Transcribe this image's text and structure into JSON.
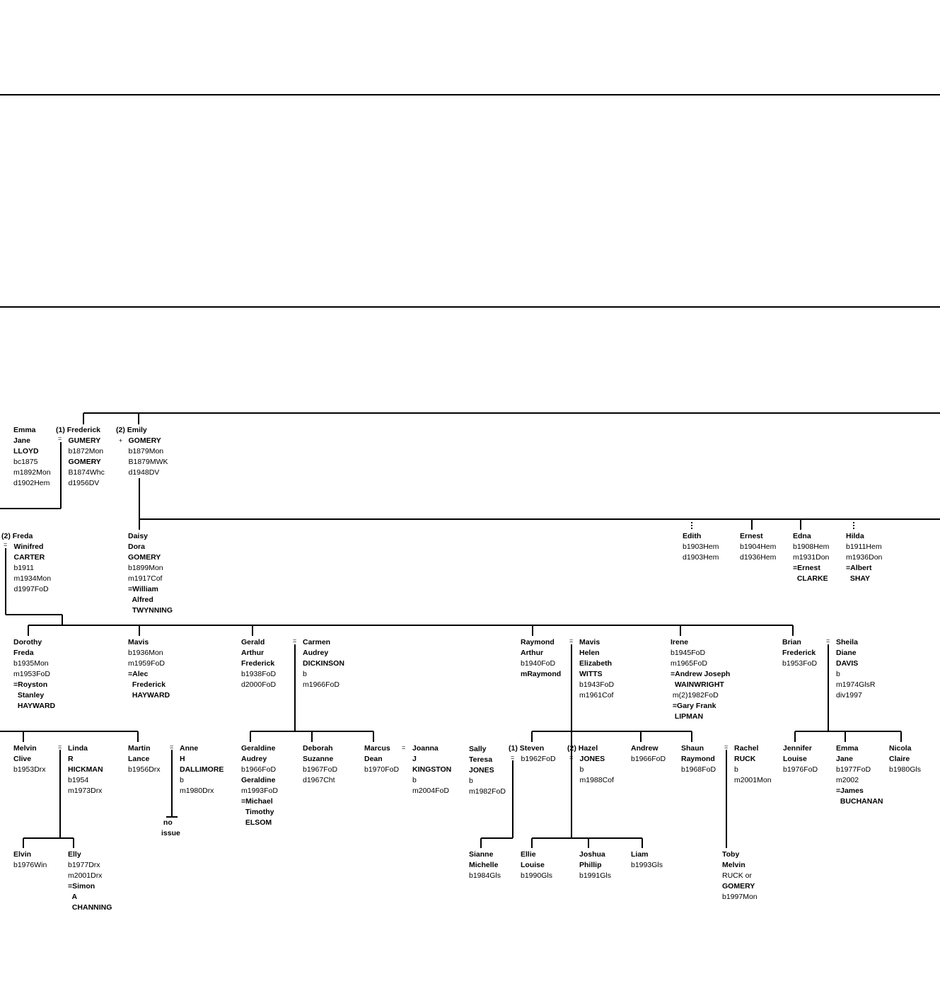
{
  "colors": {
    "background": "#ffffff",
    "ink": "#000000"
  },
  "people": [
    {
      "id": "emma",
      "lines": [
        {
          "t": "Emma",
          "b": true
        },
        {
          "t": "Jane",
          "b": true
        },
        {
          "t": "LLOYD",
          "b": true
        },
        {
          "t": "bc1875"
        },
        {
          "t": "m1892Mon"
        },
        {
          "t": "d1902Hem"
        }
      ]
    },
    {
      "id": "frederick",
      "lines": [
        {
          "t": "(1) Frederick",
          "b": true
        },
        {
          "t": "      GUMERY",
          "b": true
        },
        {
          "t": "      b1872Mon"
        },
        {
          "t": "      GOMERY",
          "b": true
        },
        {
          "t": "      B1874Whc"
        },
        {
          "t": "      d1956DV"
        }
      ]
    },
    {
      "id": "emily",
      "lines": [
        {
          "t": "(2) Emily",
          "b": true
        },
        {
          "t": "      GOMERY",
          "b": true
        },
        {
          "t": "      b1879Mon"
        },
        {
          "t": "      B1879MWK"
        },
        {
          "t": "      d1948DV"
        }
      ]
    },
    {
      "id": "freda",
      "lines": [
        {
          "t": "(2) Freda",
          "b": true
        },
        {
          "t": "      Winifred",
          "b": true
        },
        {
          "t": "      CARTER",
          "b": true
        },
        {
          "t": "      b1911"
        },
        {
          "t": "      m1934Mon"
        },
        {
          "t": "      d1997FoD"
        }
      ]
    },
    {
      "id": "daisy",
      "lines": [
        {
          "t": "Daisy",
          "b": true
        },
        {
          "t": "Dora",
          "b": true
        },
        {
          "t": "GOMERY",
          "b": true
        },
        {
          "t": "b1899Mon"
        },
        {
          "t": "m1917Cof"
        },
        {
          "t": "=William",
          "b": true
        },
        {
          "t": "  Alfred",
          "b": true
        },
        {
          "t": "  TWYNNING",
          "b": true
        }
      ]
    },
    {
      "id": "edith",
      "lines": [
        {
          "t": "Edith",
          "b": true
        },
        {
          "t": "b1903Hem"
        },
        {
          "t": "d1903Hem"
        }
      ]
    },
    {
      "id": "ernest",
      "lines": [
        {
          "t": "Ernest",
          "b": true
        },
        {
          "t": "b1904Hem"
        },
        {
          "t": "d1936Hem"
        }
      ]
    },
    {
      "id": "edna",
      "lines": [
        {
          "t": "Edna",
          "b": true
        },
        {
          "t": "b1908Hem"
        },
        {
          "t": "m1931Don"
        },
        {
          "t": "=Ernest",
          "b": true
        },
        {
          "t": "  CLARKE",
          "b": true
        }
      ]
    },
    {
      "id": "hilda",
      "lines": [
        {
          "t": "Hilda",
          "b": true
        },
        {
          "t": "b1911Hem"
        },
        {
          "t": "m1936Don"
        },
        {
          "t": "=Albert",
          "b": true
        },
        {
          "t": "  SHAY",
          "b": true
        }
      ]
    },
    {
      "id": "dorothy",
      "lines": [
        {
          "t": "Dorothy",
          "b": true
        },
        {
          "t": "Freda",
          "b": true
        },
        {
          "t": "b1935Mon"
        },
        {
          "t": "m1953FoD"
        },
        {
          "t": "=Royston",
          "b": true
        },
        {
          "t": "  Stanley",
          "b": true
        },
        {
          "t": "  HAYWARD",
          "b": true
        }
      ]
    },
    {
      "id": "mavis1",
      "lines": [
        {
          "t": "Mavis",
          "b": true
        },
        {
          "t": "b1936Mon"
        },
        {
          "t": "m1959FoD"
        },
        {
          "t": "=Alec",
          "b": true
        },
        {
          "t": "  Frederick",
          "b": true
        },
        {
          "t": "  HAYWARD",
          "b": true
        }
      ]
    },
    {
      "id": "gerald",
      "lines": [
        {
          "t": "Gerald",
          "b": true
        },
        {
          "t": "Arthur",
          "b": true
        },
        {
          "t": "Frederick",
          "b": true
        },
        {
          "t": "b1938FoD"
        },
        {
          "t": "d2000FoD"
        }
      ]
    },
    {
      "id": "carmen",
      "lines": [
        {
          "t": "Carmen",
          "b": true
        },
        {
          "t": "Audrey",
          "b": true
        },
        {
          "t": "DICKINSON",
          "b": true
        },
        {
          "t": "b"
        },
        {
          "t": "m1966FoD"
        }
      ]
    },
    {
      "id": "raymond",
      "lines": [
        {
          "t": "Raymond",
          "b": true
        },
        {
          "t": "Arthur",
          "b": true
        },
        {
          "t": "b1940FoD"
        },
        {
          "t": "mRaymond",
          "b": true
        }
      ]
    },
    {
      "id": "mavis2",
      "lines": [
        {
          "t": "Mavis",
          "b": true
        },
        {
          "t": "Helen",
          "b": true
        },
        {
          "t": "Elizabeth",
          "b": true
        },
        {
          "t": "WITTS",
          "b": true
        },
        {
          "t": "b1943FoD"
        },
        {
          "t": "m1961Cof"
        }
      ]
    },
    {
      "id": "irene",
      "lines": [
        {
          "t": "Irene",
          "b": true
        },
        {
          "t": "b1945FoD"
        },
        {
          "t": "m1965FoD"
        },
        {
          "t": "=Andrew Joseph",
          "b": true
        },
        {
          "t": "  WAINWRIGHT",
          "b": true
        },
        {
          "t": " m(2)1982FoD"
        },
        {
          "t": " =Gary Frank",
          "b": true
        },
        {
          "t": "  LIPMAN",
          "b": true
        }
      ]
    },
    {
      "id": "brian",
      "lines": [
        {
          "t": "Brian",
          "b": true
        },
        {
          "t": "Frederick",
          "b": true
        },
        {
          "t": "b1953FoD"
        }
      ]
    },
    {
      "id": "sheila",
      "lines": [
        {
          "t": "Sheila",
          "b": true
        },
        {
          "t": "Diane",
          "b": true
        },
        {
          "t": "DAVIS",
          "b": true
        },
        {
          "t": "b"
        },
        {
          "t": "m1974GlsR"
        },
        {
          "t": "div1997"
        }
      ]
    },
    {
      "id": "melvin",
      "lines": [
        {
          "t": "Melvin",
          "b": true
        },
        {
          "t": "Clive",
          "b": true
        },
        {
          "t": "b1953Drx"
        }
      ]
    },
    {
      "id": "linda",
      "lines": [
        {
          "t": "Linda",
          "b": true
        },
        {
          "t": "R",
          "b": true
        },
        {
          "t": "HICKMAN",
          "b": true
        },
        {
          "t": "b1954"
        },
        {
          "t": "m1973Drx"
        }
      ]
    },
    {
      "id": "martin",
      "lines": [
        {
          "t": "Martin",
          "b": true
        },
        {
          "t": "Lance",
          "b": true
        },
        {
          "t": "b1956Drx"
        }
      ]
    },
    {
      "id": "anne",
      "lines": [
        {
          "t": "Anne",
          "b": true
        },
        {
          "t": "H",
          "b": true
        },
        {
          "t": "DALLIMORE",
          "b": true
        },
        {
          "t": "b"
        },
        {
          "t": "m1980Drx"
        }
      ]
    },
    {
      "id": "noissue",
      "lines": [
        {
          "t": " no",
          "b": true
        },
        {
          "t": "issue",
          "b": true
        }
      ]
    },
    {
      "id": "geraldine",
      "lines": [
        {
          "t": "Geraldine",
          "b": true
        },
        {
          "t": "Audrey",
          "b": true
        },
        {
          "t": "b1966FoD"
        },
        {
          "t": "Geraldine",
          "b": true
        },
        {
          "t": "m1993FoD"
        },
        {
          "t": "=Michael",
          "b": true
        },
        {
          "t": "  Timothy",
          "b": true
        },
        {
          "t": "  ELSOM",
          "b": true
        }
      ]
    },
    {
      "id": "deborah",
      "lines": [
        {
          "t": "Deborah",
          "b": true
        },
        {
          "t": "Suzanne",
          "b": true
        },
        {
          "t": "b1967FoD"
        },
        {
          "t": "d1967Cht"
        }
      ]
    },
    {
      "id": "marcus",
      "lines": [
        {
          "t": "Marcus",
          "b": true
        },
        {
          "t": "Dean",
          "b": true
        },
        {
          "t": "b1970FoD"
        }
      ]
    },
    {
      "id": "joanna",
      "lines": [
        {
          "t": "Joanna",
          "b": true
        },
        {
          "t": "J",
          "b": true
        },
        {
          "t": "KINGSTON",
          "b": true
        },
        {
          "t": "b"
        },
        {
          "t": "m2004FoD"
        }
      ]
    },
    {
      "id": "sally",
      "lines": [
        {
          "t": "Sally",
          "b": true
        },
        {
          "t": "Teresa",
          "b": true
        },
        {
          "t": "JONES",
          "b": true
        },
        {
          "t": "b"
        },
        {
          "t": "m1982FoD"
        }
      ]
    },
    {
      "id": "steven",
      "lines": [
        {
          "t": "(1) Steven",
          "b": true
        },
        {
          "t": "      b1962FoD"
        }
      ]
    },
    {
      "id": "hazel",
      "lines": [
        {
          "t": "(2) Hazel",
          "b": true
        },
        {
          "t": "      JONES",
          "b": true
        },
        {
          "t": "      b"
        },
        {
          "t": "      m1988Cof"
        }
      ]
    },
    {
      "id": "andrew",
      "lines": [
        {
          "t": "Andrew",
          "b": true
        },
        {
          "t": "b1966FoD"
        }
      ]
    },
    {
      "id": "shaun",
      "lines": [
        {
          "t": "Shaun",
          "b": true
        },
        {
          "t": "Raymond",
          "b": true
        },
        {
          "t": "b1968FoD"
        }
      ]
    },
    {
      "id": "rachel",
      "lines": [
        {
          "t": "Rachel",
          "b": true
        },
        {
          "t": "RUCK",
          "b": true
        },
        {
          "t": "b"
        },
        {
          "t": "m2001Mon"
        }
      ]
    },
    {
      "id": "jennifer",
      "lines": [
        {
          "t": "Jennifer",
          "b": true
        },
        {
          "t": "Louise",
          "b": true
        },
        {
          "t": "b1976FoD"
        }
      ]
    },
    {
      "id": "emma2",
      "lines": [
        {
          "t": "Emma",
          "b": true
        },
        {
          "t": "Jane",
          "b": true
        },
        {
          "t": "b1977FoD"
        },
        {
          "t": "m2002"
        },
        {
          "t": "=James",
          "b": true
        },
        {
          "t": "  BUCHANAN",
          "b": true
        }
      ]
    },
    {
      "id": "nicola",
      "lines": [
        {
          "t": "Nicola",
          "b": true
        },
        {
          "t": "Claire",
          "b": true
        },
        {
          "t": "b1980Gls"
        }
      ]
    },
    {
      "id": "elvin",
      "lines": [
        {
          "t": "Elvin",
          "b": true
        },
        {
          "t": "b1976Win"
        }
      ]
    },
    {
      "id": "elly",
      "lines": [
        {
          "t": "Elly",
          "b": true
        },
        {
          "t": "b1977Drx"
        },
        {
          "t": "m2001Drx"
        },
        {
          "t": "=Simon",
          "b": true
        },
        {
          "t": "  A",
          "b": true
        },
        {
          "t": "  CHANNING",
          "b": true
        }
      ]
    },
    {
      "id": "sianne",
      "lines": [
        {
          "t": "Sianne",
          "b": true
        },
        {
          "t": "Michelle",
          "b": true
        },
        {
          "t": "b1984Gls"
        }
      ]
    },
    {
      "id": "ellie",
      "lines": [
        {
          "t": "Ellie",
          "b": true
        },
        {
          "t": "Louise",
          "b": true
        },
        {
          "t": "b1990Gls"
        }
      ]
    },
    {
      "id": "joshua",
      "lines": [
        {
          "t": "Joshua",
          "b": true
        },
        {
          "t": "Phillip",
          "b": true
        },
        {
          "t": "b1991Gls"
        }
      ]
    },
    {
      "id": "liam",
      "lines": [
        {
          "t": "Liam",
          "b": true
        },
        {
          "t": "b1993Gls"
        }
      ]
    },
    {
      "id": "toby",
      "lines": [
        {
          "t": "Toby",
          "b": true
        },
        {
          "t": "Melvin",
          "b": true
        },
        {
          "t": "RUCK or"
        },
        {
          "t": "GOMERY",
          "b": true
        },
        {
          "t": "b1997Mon"
        }
      ]
    }
  ],
  "symbols": [
    {
      "id": "marriage-frederick-emma",
      "text": "="
    },
    {
      "id": "plus-emily",
      "text": "+"
    },
    {
      "id": "marriage-freda",
      "text": "="
    },
    {
      "id": "marriage-gerald-carmen",
      "text": "="
    },
    {
      "id": "marriage-raymond-mavis",
      "text": "="
    },
    {
      "id": "marriage-brian-sheila",
      "text": "="
    },
    {
      "id": "marriage-melvin-linda",
      "text": "="
    },
    {
      "id": "marriage-martin-anne",
      "text": "="
    },
    {
      "id": "marriage-marcus-joanna",
      "text": "="
    },
    {
      "id": "marriage-steven-sally",
      "text": "="
    },
    {
      "id": "marriage-hazel",
      "text": "="
    },
    {
      "id": "marriage-shaun-rachel",
      "text": "="
    }
  ]
}
